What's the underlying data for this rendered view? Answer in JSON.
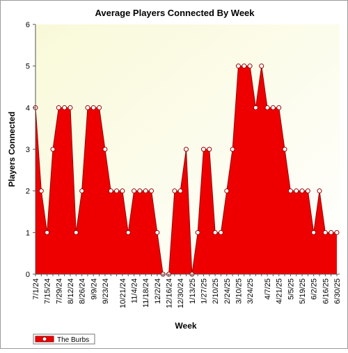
{
  "chart_data": {
    "type": "area",
    "title": "Average Players Connected By Week",
    "xlabel": "Week",
    "ylabel": "Players Connected",
    "ylim": [
      0,
      6
    ],
    "yticks": [
      0,
      1,
      2,
      3,
      4,
      5,
      6
    ],
    "grid": false,
    "legend_position": "bottom-left",
    "x_tick_labels": [
      "7/1/24",
      "7/15/24",
      "7/29/24",
      "8/12/24",
      "8/26/24",
      "9/9/24",
      "9/23/24",
      "10/21/24",
      "11/4/24",
      "11/18/24",
      "12/2/24",
      "12/16/24",
      "12/30/24",
      "1/13/25",
      "1/27/25",
      "2/10/25",
      "2/24/25",
      "3/10/25",
      "3/24/25",
      "4/7/25",
      "4/21/25",
      "5/5/25",
      "5/19/25",
      "6/2/25",
      "6/16/25",
      "6/30/25"
    ],
    "series": [
      {
        "name": "The Burbs",
        "color": "#ee0000",
        "values": [
          4,
          2,
          1,
          3,
          4,
          4,
          4,
          1,
          2,
          4,
          4,
          4,
          3,
          2,
          2,
          2,
          1,
          2,
          2,
          2,
          2,
          1,
          0,
          0,
          2,
          2,
          3,
          0,
          1,
          3,
          3,
          1,
          1,
          2,
          3,
          5,
          5,
          5,
          4,
          5,
          4,
          4,
          4,
          3,
          2,
          2,
          2,
          2,
          1,
          2,
          1,
          1,
          1
        ]
      }
    ]
  },
  "colors": {
    "plot_background_top": "#f9f9d9",
    "plot_background_bottom": "#ffffff",
    "fill": "#ee0000",
    "line": "#990000",
    "marker_fill": "#ffffff"
  }
}
